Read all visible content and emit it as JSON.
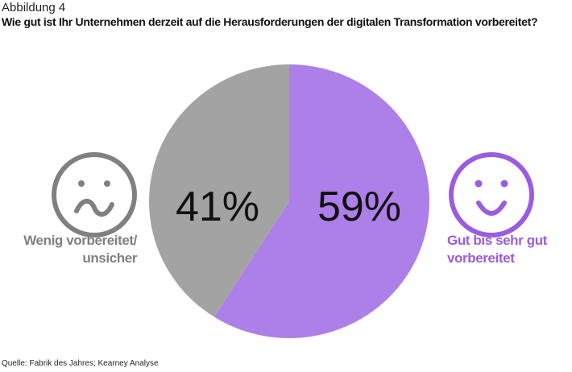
{
  "figure_label": "Abbildung 4",
  "source": "Quelle: Fabrik des Jahres; Kearney Analyse",
  "chart_data": {
    "type": "pie",
    "title": "Wie gut ist Ihr Unternehmen derzeit auf die Herausforderungen der digitalen Transformation vorbereitet?",
    "slices": [
      {
        "label": "Gut bis sehr gut vorbereitet",
        "value": 59,
        "display": "59%",
        "color": "#ad7fe8",
        "icon": "smiley-happy-icon",
        "label_color": "#9a5ce0"
      },
      {
        "label": "Wenig vorbereitet/ unsicher",
        "value": 41,
        "display": "41%",
        "color": "#a3a3a3",
        "icon": "smiley-unsure-icon",
        "label_color": "#808080"
      }
    ],
    "start": "top",
    "direction": "clockwise"
  }
}
